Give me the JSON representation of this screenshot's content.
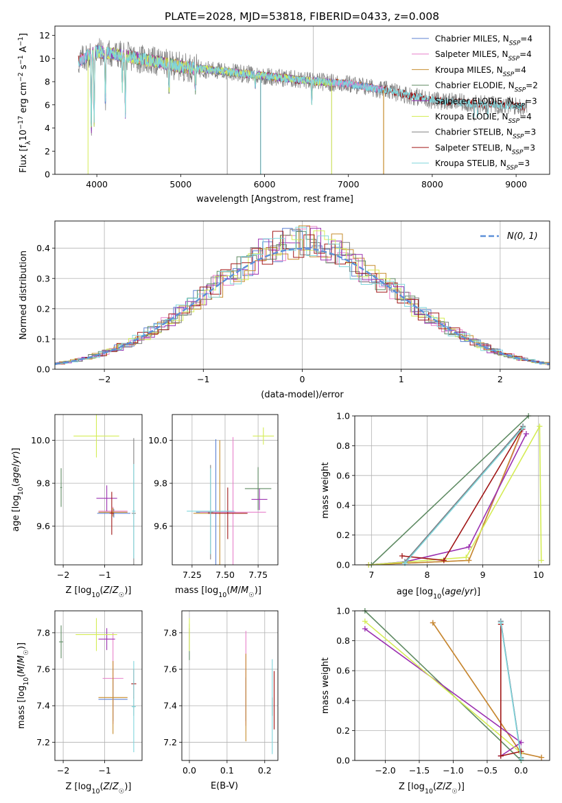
{
  "figure_title": "PLATE=2028, MJD=53818, FIBERID=0433, z=0.008",
  "colors": {
    "Chabrier MILES": "#5b7fd1",
    "Salpeter MILES": "#e77fc9",
    "Kroupa MILES": "#c58b2a",
    "Chabrier ELODIE": "#5e8a62",
    "Salpeter ELODIE": "#9b30b0",
    "Kroupa ELODIE": "#d4ec54",
    "Chabrier STELIB": "#808080",
    "Salpeter STELIB": "#a01515",
    "Kroupa STELIB": "#7fd6dc"
  },
  "chart_data": [
    {
      "id": "spectrum",
      "type": "line",
      "title": "PLATE=2028, MJD=53818, FIBERID=0433, z=0.008",
      "xlabel": "wavelength [Angstrom, rest frame]",
      "ylabel": "Flux [f_λ 10^-17 erg cm^-2 s^-1 A^-1]",
      "xlim": [
        3500,
        9400
      ],
      "ylim": [
        0,
        12.8
      ],
      "xticks": [
        4000,
        5000,
        6000,
        7000,
        8000,
        9000
      ],
      "yticks": [
        0,
        2,
        4,
        6,
        8,
        10,
        12
      ],
      "grid": false,
      "legend_position": "upper-right",
      "legend": [
        {
          "name": "Chabrier MILES",
          "sub": "SSP",
          "value": "4"
        },
        {
          "name": "Salpeter MILES",
          "sub": "SSP",
          "value": "4"
        },
        {
          "name": "Kroupa MILES",
          "sub": "SSP",
          "value": "4"
        },
        {
          "name": "Chabrier ELODIE",
          "sub": "SSP",
          "value": "2"
        },
        {
          "name": "Salpeter ELODIE",
          "sub": "SSP",
          "value": "3"
        },
        {
          "name": "Kroupa ELODIE",
          "sub": "SSP",
          "value": "4"
        },
        {
          "name": "Chabrier STELIB",
          "sub": "SSP",
          "value": "3"
        },
        {
          "name": "Salpeter STELIB",
          "sub": "SSP",
          "value": "3"
        },
        {
          "name": "Kroupa STELIB",
          "sub": "SSP",
          "value": "3"
        }
      ],
      "continuum": [
        [
          3780,
          9.7
        ],
        [
          3900,
          10.3
        ],
        [
          4000,
          10.6
        ],
        [
          4200,
          10.4
        ],
        [
          4500,
          10.0
        ],
        [
          4800,
          9.6
        ],
        [
          5000,
          9.3
        ],
        [
          5500,
          8.9
        ],
        [
          6000,
          8.5
        ],
        [
          6500,
          8.1
        ],
        [
          7000,
          7.8
        ],
        [
          7500,
          7.2
        ],
        [
          8000,
          6.4
        ],
        [
          8500,
          6.1
        ],
        [
          9000,
          5.9
        ],
        [
          9130,
          5.8
        ]
      ],
      "absorption_features": [
        [
          3934,
          3.3
        ],
        [
          3968,
          4.5
        ],
        [
          4102,
          6.2
        ],
        [
          4304,
          7.5
        ],
        [
          4340,
          5.3
        ],
        [
          4861,
          7.0
        ],
        [
          5175,
          7.4
        ],
        [
          5890,
          7.6
        ],
        [
          6563,
          6.2
        ],
        [
          8500,
          5.2
        ],
        [
          8542,
          5.0
        ],
        [
          8662,
          5.1
        ]
      ],
      "spikes": [
        [
          5555,
          0
        ],
        [
          5950,
          0
        ],
        [
          6800,
          0
        ],
        [
          7420,
          0
        ],
        [
          6580,
          12.8
        ]
      ],
      "model_ranges": {
        "MILES": [
          3800,
          7420
        ],
        "ELODIE": [
          3900,
          6800
        ],
        "STELIB": [
          3780,
          9100
        ]
      }
    },
    {
      "id": "residuals",
      "type": "step",
      "xlabel": "(data-model)/error",
      "ylabel": "Normed distribution",
      "xlim": [
        -2.5,
        2.5
      ],
      "ylim": [
        0,
        0.49
      ],
      "xticks": [
        -2,
        -1,
        0,
        1,
        2
      ],
      "yticks": [
        0,
        0.1,
        0.2,
        0.3,
        0.4
      ],
      "grid": true,
      "legend_position": "upper-right",
      "gaussian_label": "N(0, 1)",
      "gaussian_color": "#5b8fd8"
    },
    {
      "id": "age_vs_Z",
      "type": "errorbar",
      "xlabel": "Z [log10(Z/Z☉)]",
      "ylabel": "age [log10(age/yr)]",
      "xlim": [
        -2.2,
        -0.1
      ],
      "ylim": [
        9.42,
        10.12
      ],
      "xticks": [
        -2,
        -1
      ],
      "yticks": [
        9.6,
        9.8,
        10.0
      ],
      "grid": true,
      "points": [
        {
          "name": "Chabrier MILES",
          "x": -0.78,
          "xerr": 0.4,
          "y": 9.66,
          "yerr": 0.02
        },
        {
          "name": "Salpeter MILES",
          "x": -0.8,
          "xerr": 0.35,
          "y": 9.67,
          "yerr": 0.02
        },
        {
          "name": "Kroupa MILES",
          "x": -0.8,
          "xerr": 0.35,
          "y": 9.665,
          "yerr": 0.02
        },
        {
          "name": "Chabrier ELODIE",
          "x": -2.05,
          "xerr": 0.02,
          "y": 9.78,
          "yerr": 0.09
        },
        {
          "name": "Salpeter ELODIE",
          "x": -0.95,
          "xerr": 0.25,
          "y": 9.73,
          "yerr": 0.06
        },
        {
          "name": "Kroupa ELODIE",
          "x": -1.2,
          "xerr": 0.55,
          "y": 10.02,
          "yerr": 0.1
        },
        {
          "name": "Chabrier STELIB",
          "x": -0.3,
          "xerr": 0.05,
          "y": 9.66,
          "yerr": 0.35
        },
        {
          "name": "Salpeter STELIB",
          "x": -0.83,
          "xerr": 0.05,
          "y": 9.66,
          "yerr": 0.1
        },
        {
          "name": "Kroupa STELIB",
          "x": -0.3,
          "xerr": 0.04,
          "y": 9.67,
          "yerr": 0.22
        }
      ]
    },
    {
      "id": "age_vs_mass",
      "type": "errorbar",
      "xlabel": "mass [log10(M/M☉)]",
      "ylabel": "",
      "xlim": [
        7.1,
        7.9
      ],
      "ylim": [
        9.42,
        10.12
      ],
      "xticks": [
        7.25,
        7.5,
        7.75
      ],
      "yticks": [
        9.6,
        9.8,
        10.0
      ],
      "grid": true,
      "points": [
        {
          "name": "Chabrier MILES",
          "x": 7.43,
          "xerr": 0.15,
          "y": 9.665,
          "yerr": 0.34
        },
        {
          "name": "Salpeter MILES",
          "x": 7.56,
          "xerr": 0.25,
          "y": 9.665,
          "yerr": 0.35
        },
        {
          "name": "Kroupa MILES",
          "x": 7.46,
          "xerr": 0.2,
          "y": 9.66,
          "yerr": 0.34
        },
        {
          "name": "Chabrier ELODIE",
          "x": 7.75,
          "xerr": 0.1,
          "y": 9.775,
          "yerr": 0.1
        },
        {
          "name": "Salpeter ELODIE",
          "x": 7.76,
          "xerr": 0.06,
          "y": 9.725,
          "yerr": 0.05
        },
        {
          "name": "Kroupa ELODIE",
          "x": 7.79,
          "xerr": 0.08,
          "y": 10.02,
          "yerr": 0.04
        },
        {
          "name": "Chabrier STELIB",
          "x": 7.39,
          "xerr": 0.02,
          "y": 9.665,
          "yerr": 0.22
        },
        {
          "name": "Salpeter STELIB",
          "x": 7.52,
          "xerr": 0.15,
          "y": 9.66,
          "yerr": 0.12
        },
        {
          "name": "Kroupa STELIB",
          "x": 7.39,
          "xerr": 0.18,
          "y": 9.67,
          "yerr": 0.2
        }
      ]
    },
    {
      "id": "weight_vs_age",
      "type": "line",
      "xlabel": "age [log10(age/yr)]",
      "ylabel": "mass weight",
      "xlim": [
        6.7,
        10.2
      ],
      "ylim": [
        0,
        1.0
      ],
      "xticks": [
        7,
        8,
        9,
        10
      ],
      "yticks": [
        0,
        0.2,
        0.4,
        0.6,
        0.8,
        1.0
      ],
      "grid": true,
      "series": [
        {
          "name": "Chabrier MILES",
          "x": [
            6.95,
            7.6,
            9.72
          ],
          "y": [
            0.0,
            0.02,
            0.93
          ]
        },
        {
          "name": "Salpeter MILES",
          "x": [
            6.95,
            8.75,
            9.72
          ],
          "y": [
            0.0,
            0.03,
            0.91
          ]
        },
        {
          "name": "Kroupa MILES",
          "x": [
            6.95,
            8.75,
            9.72
          ],
          "y": [
            0.0,
            0.03,
            0.92
          ]
        },
        {
          "name": "Chabrier ELODIE",
          "x": [
            7.0,
            9.82
          ],
          "y": [
            0.0,
            1.0
          ]
        },
        {
          "name": "Salpeter ELODIE",
          "x": [
            6.95,
            7.6,
            8.75,
            9.78
          ],
          "y": [
            0.0,
            0.02,
            0.12,
            0.88
          ]
        },
        {
          "name": "Kroupa ELODIE",
          "x": [
            6.95,
            8.7,
            10.02,
            10.05
          ],
          "y": [
            0.0,
            0.05,
            0.93,
            0.03
          ]
        },
        {
          "name": "Chabrier STELIB",
          "x": [
            7.6,
            9.72
          ],
          "y": [
            0.02,
            0.93
          ]
        },
        {
          "name": "Salpeter STELIB",
          "x": [
            7.55,
            8.3,
            9.7
          ],
          "y": [
            0.06,
            0.03,
            0.91
          ]
        },
        {
          "name": "Kroupa STELIB",
          "x": [
            7.6,
            9.72
          ],
          "y": [
            0.01,
            0.92
          ]
        }
      ]
    },
    {
      "id": "mass_vs_Z",
      "type": "errorbar",
      "xlabel": "Z [log10(Z/Z☉)]",
      "ylabel": "mass [log10(M/M☉)]",
      "xlim": [
        -2.2,
        -0.1
      ],
      "ylim": [
        7.1,
        7.92
      ],
      "xticks": [
        -2,
        -1
      ],
      "yticks": [
        7.2,
        7.4,
        7.6,
        7.8
      ],
      "grid": true,
      "points": [
        {
          "name": "Chabrier MILES",
          "x": -0.8,
          "xerr": 0.35,
          "y": 7.435,
          "yerr": 0.12
        },
        {
          "name": "Salpeter MILES",
          "x": -0.8,
          "xerr": 0.25,
          "y": 7.55,
          "yerr": 0.25
        },
        {
          "name": "Kroupa MILES",
          "x": -0.8,
          "xerr": 0.35,
          "y": 7.445,
          "yerr": 0.2
        },
        {
          "name": "Chabrier ELODIE",
          "x": -2.05,
          "xerr": 0.05,
          "y": 7.75,
          "yerr": 0.09
        },
        {
          "name": "Salpeter ELODIE",
          "x": -0.95,
          "xerr": 0.2,
          "y": 7.765,
          "yerr": 0.06
        },
        {
          "name": "Kroupa ELODIE",
          "x": -1.2,
          "xerr": 0.5,
          "y": 7.79,
          "yerr": 0.09
        },
        {
          "name": "Chabrier STELIB",
          "x": -0.3,
          "xerr": 0.04,
          "y": 7.395,
          "yerr": 0.05
        },
        {
          "name": "Salpeter STELIB",
          "x": -0.3,
          "xerr": 0.06,
          "y": 7.52,
          "yerr": 0.08
        },
        {
          "name": "Kroupa STELIB",
          "x": -0.3,
          "xerr": 0.05,
          "y": 7.395,
          "yerr": 0.25
        }
      ]
    },
    {
      "id": "mass_vs_EBV",
      "type": "errorbar",
      "xlabel": "E(B-V)",
      "ylabel": "",
      "xlim": [
        -0.02,
        0.235
      ],
      "ylim": [
        7.1,
        7.92
      ],
      "xticks": [
        0.0,
        0.1,
        0.2
      ],
      "yticks": [
        7.2,
        7.4,
        7.6,
        7.8
      ],
      "grid": true,
      "points": [
        {
          "name": "Chabrier MILES",
          "x": 0.15,
          "xerr": 0.0,
          "y": 7.435,
          "yerr": 0.12
        },
        {
          "name": "Salpeter MILES",
          "x": 0.15,
          "xerr": 0.0,
          "y": 7.55,
          "yerr": 0.26
        },
        {
          "name": "Kroupa MILES",
          "x": 0.15,
          "xerr": 0.0,
          "y": 7.445,
          "yerr": 0.24
        },
        {
          "name": "Chabrier ELODIE",
          "x": 0.0,
          "xerr": 0.0,
          "y": 7.75,
          "yerr": 0.1
        },
        {
          "name": "Salpeter ELODIE",
          "x": 0.0,
          "xerr": 0.0,
          "y": 7.765,
          "yerr": 0.06
        },
        {
          "name": "Kroupa ELODIE",
          "x": 0.0,
          "xerr": 0.0,
          "y": 7.79,
          "yerr": 0.09
        },
        {
          "name": "Chabrier STELIB",
          "x": 0.22,
          "xerr": 0.0,
          "y": 7.395,
          "yerr": 0.05
        },
        {
          "name": "Salpeter STELIB",
          "x": 0.225,
          "xerr": 0.0,
          "y": 7.43,
          "yerr": 0.16
        },
        {
          "name": "Kroupa STELIB",
          "x": 0.22,
          "xerr": 0.0,
          "y": 7.395,
          "yerr": 0.26
        }
      ]
    },
    {
      "id": "weight_vs_Z",
      "type": "line",
      "xlabel": "Z [log10(Z/Z☉)]",
      "ylabel": "mass weight",
      "xlim": [
        -2.45,
        0.42
      ],
      "ylim": [
        0,
        1.0
      ],
      "xticks": [
        -2.0,
        -1.5,
        -1.0,
        -0.5,
        0.0
      ],
      "yticks": [
        0,
        0.2,
        0.4,
        0.6,
        0.8,
        1.0
      ],
      "grid": true,
      "series": [
        {
          "name": "Chabrier MILES",
          "x": [
            -0.3,
            0.0
          ],
          "y": [
            0.93,
            0.02
          ]
        },
        {
          "name": "Salpeter MILES",
          "x": [
            -1.3,
            0.0,
            0.3
          ],
          "y": [
            0.92,
            0.05,
            0.02
          ]
        },
        {
          "name": "Kroupa MILES",
          "x": [
            -1.3,
            0.0,
            0.3
          ],
          "y": [
            0.92,
            0.05,
            0.02
          ]
        },
        {
          "name": "Chabrier ELODIE",
          "x": [
            -2.3,
            0.0
          ],
          "y": [
            1.0,
            0.0
          ]
        },
        {
          "name": "Salpeter ELODIE",
          "x": [
            -2.3,
            0.0,
            -0.3
          ],
          "y": [
            0.88,
            0.12,
            0.03
          ]
        },
        {
          "name": "Kroupa ELODIE",
          "x": [
            -2.3,
            0.0,
            0.0
          ],
          "y": [
            0.93,
            0.05,
            0.02
          ]
        },
        {
          "name": "Chabrier STELIB",
          "x": [
            -0.3,
            0.0
          ],
          "y": [
            0.93,
            0.02
          ]
        },
        {
          "name": "Salpeter STELIB",
          "x": [
            -0.3,
            -0.3,
            0.0
          ],
          "y": [
            0.91,
            0.03,
            0.06
          ]
        },
        {
          "name": "Kroupa STELIB",
          "x": [
            -0.3,
            0.0
          ],
          "y": [
            0.92,
            0.01
          ]
        }
      ]
    }
  ]
}
